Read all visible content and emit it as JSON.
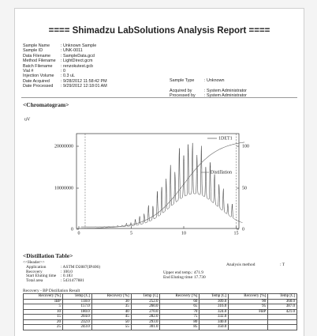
{
  "header": {
    "title": "==== Shimadzu LabSolutions Analysis Report ===="
  },
  "info_left": [
    {
      "label": "Sample Name",
      "value": ": Unknown Sample"
    },
    {
      "label": "Sample ID",
      "value": ": UNK-0011"
    },
    {
      "label": "Data Filename",
      "value": ": SampleData.gcd"
    },
    {
      "label": "Method Filename",
      "value": ": LightDirect.gcm"
    },
    {
      "label": "Batch Filename",
      "value": ": renzokutest.gcb"
    },
    {
      "label": "Vial #",
      "value": ": 0"
    },
    {
      "label": "Injection Volume",
      "value": ": 0.3 uL"
    },
    {
      "label": "Date Acquired",
      "value": ": 9/28/2012 11:58:42 PM"
    },
    {
      "label": "Date Processed",
      "value": ": 9/29/2012 12:18:01 AM"
    }
  ],
  "info_right": [
    {
      "label": "Sample Type",
      "value": ": Unknown"
    },
    {
      "label": "Acquired by",
      "value": ": System Administrator"
    },
    {
      "label": "Processed by",
      "value": ": System Administrator"
    }
  ],
  "chromatogram": {
    "title": "<Chromatogram>",
    "y_unit": "uV",
    "x_unit": "min",
    "yticks": [
      "20000000",
      "10000000",
      "0"
    ],
    "xticks": [
      "0",
      "5",
      "10",
      "15"
    ],
    "y2ticks": [
      "100",
      "50",
      "0"
    ],
    "legend": [
      "1DET1",
      "Distillation"
    ]
  },
  "distillation": {
    "title": "<Distillation Table>",
    "header_label": "<<Header>>",
    "left": [
      {
        "label": "Application",
        "value": ": ASTM D2887(IP406)"
      },
      {
        "label": "Recovery",
        "value": ": 100.0"
      },
      {
        "label": "Start Eluting time",
        "value": ": 0.183"
      },
      {
        "label": "Total area",
        "value": ": 5431477881"
      }
    ],
    "right": [
      {
        "label": "Analysis method",
        "value": ": T"
      },
      {
        "label": "Upper end temp.",
        "value": ": 471.9"
      },
      {
        "label": "End Eluting time",
        "value": ": 17.730"
      }
    ],
    "table_caption": "Recovery - BP Distillation Result",
    "columns": [
      "Recovery [%]",
      "Temp [C]",
      "Recovery [%]",
      "Temp [C]",
      "Recovery [%]",
      "Temp [C]",
      "Recovery [%]",
      "Temp [C]"
    ],
    "rows": [
      [
        "IBP",
        "118.0",
        "30",
        "252.0",
        "60",
        "309.0",
        "90",
        "360.0"
      ],
      [
        "5",
        "157.0",
        "35",
        "260.0",
        "65",
        "316.0",
        "95",
        "387.0"
      ],
      [
        "10",
        "180.0",
        "40",
        "270.0",
        "70",
        "324.0",
        "FBP",
        "421.0"
      ],
      [
        "15",
        "204.0",
        "45",
        "282.0",
        "75",
        "332.0"
      ],
      [
        "20",
        "232.0",
        "50",
        "293.0",
        "80",
        "340.0"
      ],
      [
        "25",
        "243.0",
        "55",
        "301.0",
        "85",
        "350.0"
      ]
    ]
  }
}
